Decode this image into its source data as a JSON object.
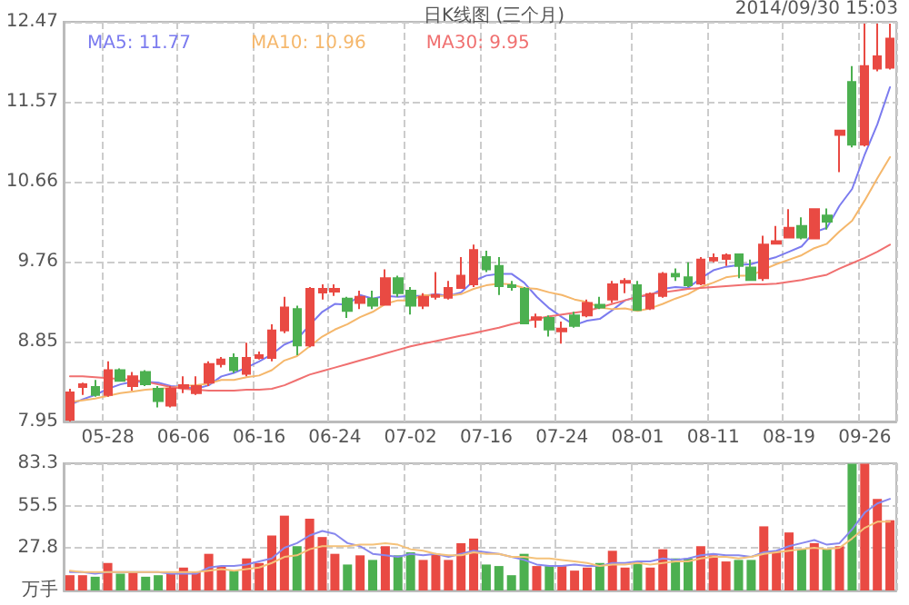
{
  "chart_data": [
    {
      "type": "candlestick",
      "title": "日K线图 (三个月)",
      "annotations": [
        "2014/09/30 15:03"
      ],
      "categories": [
        null,
        null,
        null,
        "05-28",
        null,
        null,
        null,
        null,
        null,
        "06-06",
        null,
        null,
        null,
        null,
        null,
        "06-16",
        null,
        null,
        null,
        null,
        null,
        "06-24",
        null,
        null,
        null,
        null,
        null,
        "07-02",
        null,
        null,
        null,
        null,
        null,
        "07-16",
        null,
        null,
        null,
        null,
        null,
        "07-24",
        null,
        null,
        null,
        null,
        null,
        "08-01",
        null,
        null,
        null,
        null,
        null,
        "08-11",
        null,
        null,
        null,
        null,
        null,
        "08-19",
        null,
        null,
        null,
        null,
        null,
        "09-26",
        null,
        null
      ],
      "ohlc": [
        [
          7.97,
          8.32,
          7.95,
          8.28
        ],
        [
          8.34,
          8.39,
          8.25,
          8.37
        ],
        [
          8.34,
          8.42,
          8.23,
          8.25
        ],
        [
          8.25,
          8.63,
          8.23,
          8.53
        ],
        [
          8.53,
          8.55,
          8.4,
          8.41
        ],
        [
          8.35,
          8.51,
          8.3,
          8.46
        ],
        [
          8.51,
          8.53,
          8.35,
          8.37
        ],
        [
          8.32,
          8.35,
          8.11,
          8.18
        ],
        [
          8.13,
          8.35,
          8.11,
          8.32
        ],
        [
          8.33,
          8.46,
          8.27,
          8.36
        ],
        [
          8.27,
          8.46,
          8.25,
          8.35
        ],
        [
          8.39,
          8.63,
          8.35,
          8.6
        ],
        [
          8.6,
          8.68,
          8.56,
          8.65
        ],
        [
          8.67,
          8.72,
          8.5,
          8.53
        ],
        [
          8.49,
          8.84,
          8.46,
          8.67
        ],
        [
          8.67,
          8.74,
          8.65,
          8.7
        ],
        [
          8.67,
          9.05,
          8.63,
          8.98
        ],
        [
          8.98,
          9.36,
          8.95,
          9.24
        ],
        [
          9.22,
          9.26,
          8.7,
          8.81
        ],
        [
          8.81,
          9.47,
          8.79,
          9.45
        ],
        [
          9.41,
          9.5,
          9.33,
          9.45
        ],
        [
          9.42,
          9.5,
          9.37,
          9.45
        ],
        [
          9.34,
          9.36,
          9.12,
          9.2
        ],
        [
          9.29,
          9.43,
          9.22,
          9.36
        ],
        [
          9.34,
          9.43,
          9.22,
          9.26
        ],
        [
          9.27,
          9.67,
          9.26,
          9.57
        ],
        [
          9.57,
          9.6,
          9.36,
          9.4
        ],
        [
          9.43,
          9.47,
          9.16,
          9.26
        ],
        [
          9.26,
          9.4,
          9.22,
          9.36
        ],
        [
          9.36,
          9.64,
          9.33,
          9.38
        ],
        [
          9.35,
          9.54,
          9.33,
          9.46
        ],
        [
          9.46,
          9.81,
          9.45,
          9.6
        ],
        [
          9.5,
          9.95,
          9.47,
          9.89
        ],
        [
          9.81,
          9.88,
          9.64,
          9.67
        ],
        [
          9.71,
          9.81,
          9.38,
          9.48
        ],
        [
          9.49,
          9.54,
          9.43,
          9.47
        ],
        [
          9.45,
          9.47,
          9.05,
          9.06
        ],
        [
          9.1,
          9.17,
          9.01,
          9.13
        ],
        [
          9.12,
          9.15,
          8.91,
          8.99
        ],
        [
          8.97,
          9.08,
          8.83,
          9.0
        ],
        [
          9.15,
          9.19,
          9.01,
          9.03
        ],
        [
          9.15,
          9.33,
          9.13,
          9.29
        ],
        [
          9.27,
          9.36,
          9.22,
          9.24
        ],
        [
          9.33,
          9.54,
          9.29,
          9.5
        ],
        [
          9.52,
          9.57,
          9.4,
          9.54
        ],
        [
          9.49,
          9.54,
          9.2,
          9.21
        ],
        [
          9.23,
          9.41,
          9.21,
          9.39
        ],
        [
          9.37,
          9.64,
          9.35,
          9.62
        ],
        [
          9.62,
          9.68,
          9.54,
          9.59
        ],
        [
          9.58,
          9.75,
          9.47,
          9.49
        ],
        [
          9.51,
          9.81,
          9.49,
          9.78
        ],
        [
          9.77,
          9.85,
          9.75,
          9.8
        ],
        [
          9.79,
          9.85,
          9.71,
          9.83
        ],
        [
          9.84,
          9.85,
          9.57,
          9.71
        ],
        [
          9.69,
          9.78,
          9.54,
          9.55
        ],
        [
          9.57,
          10.05,
          9.54,
          9.95
        ],
        [
          9.96,
          10.16,
          9.95,
          9.99
        ],
        [
          10.03,
          10.35,
          10.02,
          10.14
        ],
        [
          10.16,
          10.26,
          10.01,
          10.03
        ],
        [
          10.02,
          10.36,
          10.01,
          10.35
        ],
        [
          10.28,
          10.36,
          10.12,
          10.21
        ],
        [
          11.19,
          11.24,
          10.77,
          11.24
        ],
        [
          11.79,
          11.97,
          11.05,
          11.08
        ],
        [
          11.08,
          12.45,
          11.06,
          11.97
        ],
        [
          11.94,
          12.45,
          11.91,
          12.08
        ],
        [
          11.95,
          12.45,
          11.93,
          12.28
        ]
      ],
      "colors": [
        "#e94a43",
        "#e94a43",
        "#4cb050",
        "#e94a43",
        "#4cb050",
        "#e94a43",
        "#4cb050",
        "#4cb050",
        "#e94a43",
        "#e94a43",
        "#e94a43",
        "#e94a43",
        "#e94a43",
        "#4cb050",
        "#e94a43",
        "#e94a43",
        "#e94a43",
        "#e94a43",
        "#4cb050",
        "#e94a43",
        "#e94a43",
        "#e94a43",
        "#4cb050",
        "#e94a43",
        "#4cb050",
        "#e94a43",
        "#4cb050",
        "#4cb050",
        "#e94a43",
        "#e94a43",
        "#e94a43",
        "#e94a43",
        "#e94a43",
        "#4cb050",
        "#4cb050",
        "#4cb050",
        "#4cb050",
        "#e94a43",
        "#4cb050",
        "#e94a43",
        "#4cb050",
        "#e94a43",
        "#4cb050",
        "#e94a43",
        "#e94a43",
        "#4cb050",
        "#e94a43",
        "#e94a43",
        "#4cb050",
        "#4cb050",
        "#e94a43",
        "#e94a43",
        "#e94a43",
        "#4cb050",
        "#4cb050",
        "#e94a43",
        "#e94a43",
        "#e94a43",
        "#4cb050",
        "#e94a43",
        "#4cb050",
        "#e94a43",
        "#4cb050",
        "#e94a43",
        "#e94a43",
        "#e94a43"
      ],
      "series": [
        {
          "type": "line",
          "name": "MA5: 11.77",
          "color": "#7b7bef",
          "values": [
            8.14,
            8.2,
            8.25,
            8.32,
            8.37,
            8.4,
            8.4,
            8.39,
            8.35,
            8.34,
            8.32,
            8.36,
            8.46,
            8.5,
            8.56,
            8.63,
            8.71,
            8.82,
            8.88,
            9.04,
            9.19,
            9.28,
            9.27,
            9.38,
            9.34,
            9.37,
            9.36,
            9.37,
            9.37,
            9.39,
            9.37,
            9.41,
            9.54,
            9.6,
            9.62,
            9.62,
            9.52,
            9.36,
            9.23,
            9.13,
            9.04,
            9.09,
            9.11,
            9.21,
            9.32,
            9.36,
            9.38,
            9.45,
            9.47,
            9.46,
            9.57,
            9.66,
            9.7,
            9.72,
            9.73,
            9.77,
            9.81,
            9.87,
            9.93,
            10.09,
            10.14,
            10.39,
            10.58,
            10.97,
            11.31,
            11.73
          ]
        },
        {
          "type": "line",
          "name": "MA10: 10.96",
          "color": "#f5b76b",
          "values": [
            8.17,
            8.19,
            8.21,
            8.24,
            8.27,
            8.29,
            8.31,
            8.32,
            8.33,
            8.35,
            8.36,
            8.38,
            8.42,
            8.42,
            8.45,
            8.47,
            8.53,
            8.64,
            8.69,
            8.8,
            8.91,
            8.99,
            9.05,
            9.13,
            9.19,
            9.28,
            9.32,
            9.32,
            9.38,
            9.37,
            9.37,
            9.39,
            9.45,
            9.49,
            9.51,
            9.5,
            9.46,
            9.45,
            9.41,
            9.38,
            9.33,
            9.3,
            9.24,
            9.22,
            9.23,
            9.2,
            9.23,
            9.28,
            9.34,
            9.39,
            9.47,
            9.52,
            9.58,
            9.6,
            9.6,
            9.67,
            9.73,
            9.78,
            9.83,
            9.91,
            9.96,
            10.1,
            10.22,
            10.45,
            10.7,
            10.94
          ]
        },
        {
          "type": "line",
          "name": "MA30: 9.95",
          "color": "#f07070",
          "values": [
            8.46,
            8.46,
            8.45,
            8.44,
            8.43,
            8.42,
            8.4,
            8.37,
            8.34,
            8.32,
            8.31,
            8.3,
            8.3,
            8.3,
            8.31,
            8.31,
            8.32,
            8.36,
            8.42,
            8.48,
            8.52,
            8.56,
            8.6,
            8.64,
            8.68,
            8.72,
            8.76,
            8.8,
            8.83,
            8.86,
            8.89,
            8.92,
            8.95,
            8.98,
            9.01,
            9.05,
            9.08,
            9.11,
            9.14,
            9.16,
            9.18,
            9.2,
            9.24,
            9.28,
            9.32,
            9.36,
            9.39,
            9.41,
            9.43,
            9.45,
            9.46,
            9.47,
            9.48,
            9.49,
            9.5,
            9.5,
            9.51,
            9.53,
            9.55,
            9.58,
            9.61,
            9.68,
            9.74,
            9.8,
            9.87,
            9.95
          ]
        }
      ],
      "ylim": [
        7.95,
        12.47
      ],
      "yticks": [
        7.95,
        8.85,
        9.76,
        10.66,
        11.57,
        12.47
      ],
      "grid": true,
      "legend": "top left",
      "marker": "none"
    },
    {
      "type": "bar",
      "categories": [
        null,
        null,
        null,
        null,
        null,
        null,
        null,
        null,
        null,
        null,
        null,
        null,
        null,
        null,
        null,
        null,
        null,
        null,
        null,
        null,
        null,
        null,
        null,
        null,
        null,
        null,
        null,
        null,
        null,
        null,
        null,
        null,
        null,
        null,
        null,
        null,
        null,
        null,
        null,
        null,
        null,
        null,
        null,
        null,
        null,
        null,
        null,
        null,
        null,
        null,
        null,
        null,
        null,
        null,
        null,
        null,
        null,
        null,
        null,
        null,
        null,
        null,
        null,
        null,
        null,
        null
      ],
      "tick_labels": "y",
      "series": [
        {
          "type": "bar",
          "values": [
            10,
            10,
            9,
            18,
            11,
            12,
            9,
            10,
            11,
            15,
            12,
            24,
            16,
            13,
            21,
            18,
            36,
            49,
            29,
            47,
            35,
            24,
            17,
            23,
            20,
            29,
            23,
            25,
            20,
            24,
            20,
            31,
            34,
            17,
            16,
            10,
            24,
            16,
            16,
            16,
            13,
            15,
            18,
            26,
            15,
            19,
            15,
            27,
            21,
            21,
            29,
            23,
            19,
            20,
            20,
            42,
            26,
            38,
            27,
            31,
            27,
            29,
            83,
            83,
            60,
            46
          ],
          "colors": [
            "#e94a43",
            "#e94a43",
            "#4cb050",
            "#e94a43",
            "#4cb050",
            "#e94a43",
            "#4cb050",
            "#4cb050",
            "#e94a43",
            "#e94a43",
            "#e94a43",
            "#e94a43",
            "#e94a43",
            "#4cb050",
            "#e94a43",
            "#e94a43",
            "#e94a43",
            "#e94a43",
            "#4cb050",
            "#e94a43",
            "#e94a43",
            "#e94a43",
            "#4cb050",
            "#e94a43",
            "#4cb050",
            "#e94a43",
            "#4cb050",
            "#4cb050",
            "#e94a43",
            "#e94a43",
            "#e94a43",
            "#e94a43",
            "#e94a43",
            "#4cb050",
            "#4cb050",
            "#4cb050",
            "#4cb050",
            "#e94a43",
            "#4cb050",
            "#e94a43",
            "#e94a43",
            "#e94a43",
            "#4cb050",
            "#e94a43",
            "#e94a43",
            "#4cb050",
            "#e94a43",
            "#e94a43",
            "#4cb050",
            "#4cb050",
            "#e94a43",
            "#e94a43",
            "#e94a43",
            "#4cb050",
            "#4cb050",
            "#e94a43",
            "#e94a43",
            "#e94a43",
            "#4cb050",
            "#e94a43",
            "#4cb050",
            "#e94a43",
            "#4cb050",
            "#e94a43",
            "#e94a43",
            "#e94a43"
          ]
        },
        {
          "type": "line",
          "color": "#8888ee",
          "values": [
            12,
            12,
            11,
            12,
            12,
            12,
            12,
            12,
            11,
            11,
            11,
            15,
            16,
            16,
            17,
            19,
            21,
            28,
            31,
            36,
            39,
            37,
            31,
            29,
            24,
            23,
            22,
            24,
            23,
            24,
            22,
            24,
            26,
            25,
            24,
            22,
            20,
            17,
            16,
            16,
            17,
            16,
            16,
            18,
            18,
            19,
            19,
            21,
            20,
            21,
            23,
            24,
            23,
            23,
            22,
            25,
            26,
            29,
            31,
            33,
            30,
            31,
            40,
            51,
            57,
            60
          ]
        },
        {
          "type": "line",
          "color": "#f5c27a",
          "values": [
            13,
            12,
            12,
            12,
            12,
            12,
            12,
            12,
            12,
            12,
            12,
            13,
            14,
            13,
            14,
            15,
            18,
            22,
            23,
            27,
            29,
            29,
            29,
            30,
            30,
            31,
            30,
            27,
            26,
            24,
            23,
            23,
            25,
            24,
            24,
            22,
            22,
            21,
            21,
            20,
            19,
            18,
            16,
            17,
            17,
            18,
            17,
            18,
            19,
            19,
            21,
            22,
            22,
            21,
            22,
            24,
            25,
            26,
            27,
            28,
            27,
            28,
            34,
            41,
            45,
            45
          ]
        }
      ],
      "ylim": [
        0,
        83.3
      ],
      "yticks": [
        {
          "value": 0,
          "label": "万手"
        },
        27.8,
        55.5,
        83.3
      ],
      "grid": true,
      "marker": "none"
    }
  ]
}
